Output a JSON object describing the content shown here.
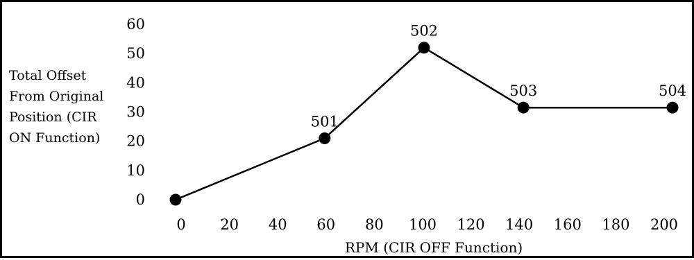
{
  "chart_data": {
    "type": "line",
    "title": "",
    "xlabel": "RPM (CIR OFF Function)",
    "ylabel_lines": [
      "Total Offset",
      "From Original",
      "Position (CIR",
      "ON Function)"
    ],
    "x_ticks": [
      0,
      20,
      40,
      60,
      80,
      100,
      120,
      140,
      160,
      180,
      200
    ],
    "y_ticks": [
      0,
      10,
      20,
      30,
      40,
      50,
      60
    ],
    "xlim": [
      0,
      200
    ],
    "ylim": [
      0,
      60
    ],
    "grid": false,
    "legend": "none",
    "series": [
      {
        "points": [
          {
            "x": 0,
            "y": 0,
            "label": ""
          },
          {
            "x": 60,
            "y": 21,
            "label": "501"
          },
          {
            "x": 100,
            "y": 52,
            "label": "502"
          },
          {
            "x": 140,
            "y": 31.5,
            "label": "503"
          },
          {
            "x": 200,
            "y": 31.5,
            "label": "504"
          }
        ]
      }
    ],
    "colors": {
      "line": "#000000",
      "marker": "#000000"
    }
  }
}
